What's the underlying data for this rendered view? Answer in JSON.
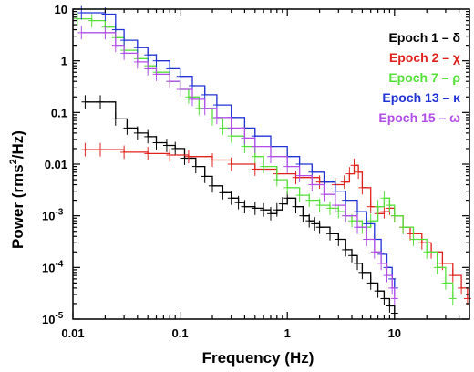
{
  "chart_data": {
    "type": "line",
    "xlabel": "Frequency (Hz)",
    "ylabel_main": "Power (rms",
    "ylabel_sup": "2",
    "ylabel_tail": "/Hz)",
    "xscale": "log",
    "yscale": "log",
    "xlim": [
      0.01,
      50
    ],
    "ylim": [
      1e-05,
      10
    ],
    "x_ticks": [
      {
        "value": 0.01,
        "label": "0.01"
      },
      {
        "value": 0.1,
        "label": "0.1"
      },
      {
        "value": 1,
        "label": "1"
      },
      {
        "value": 10,
        "label": "10"
      }
    ],
    "y_ticks": [
      {
        "value": 10,
        "label": "10"
      },
      {
        "value": 1,
        "label": "1"
      },
      {
        "value": 0.1,
        "label": "0.1"
      },
      {
        "value": 0.01,
        "label": "0.01"
      },
      {
        "value": 0.001,
        "label": "10",
        "sup": "-3"
      },
      {
        "value": 0.0001,
        "label": "10",
        "sup": "-4"
      },
      {
        "value": 1e-05,
        "label": "10",
        "sup": "-5"
      }
    ],
    "legend_position": "top-right",
    "grid": false,
    "series": [
      {
        "name": "Epoch 1 – δ",
        "color": "#000000",
        "points": [
          [
            0.013,
            0.16
          ],
          [
            0.018,
            0.16
          ],
          [
            0.025,
            0.075
          ],
          [
            0.032,
            0.05
          ],
          [
            0.04,
            0.04
          ],
          [
            0.05,
            0.034
          ],
          [
            0.06,
            0.026
          ],
          [
            0.075,
            0.023
          ],
          [
            0.09,
            0.02
          ],
          [
            0.11,
            0.013
          ],
          [
            0.14,
            0.009
          ],
          [
            0.17,
            0.0058
          ],
          [
            0.2,
            0.0038
          ],
          [
            0.25,
            0.0028
          ],
          [
            0.3,
            0.0022
          ],
          [
            0.35,
            0.0018
          ],
          [
            0.4,
            0.0015
          ],
          [
            0.5,
            0.0014
          ],
          [
            0.6,
            0.0013
          ],
          [
            0.7,
            0.0011
          ],
          [
            0.8,
            0.0013
          ],
          [
            0.9,
            0.0017
          ],
          [
            1.0,
            0.0022
          ],
          [
            1.2,
            0.0015
          ],
          [
            1.4,
            0.001
          ],
          [
            1.6,
            0.0008
          ],
          [
            1.8,
            0.0007
          ],
          [
            2.0,
            0.0006
          ],
          [
            2.5,
            0.00045
          ],
          [
            3.0,
            0.00035
          ],
          [
            3.5,
            0.00022
          ],
          [
            4.0,
            0.00017
          ],
          [
            4.5,
            0.00012
          ],
          [
            5.0,
            8e-05
          ],
          [
            6.0,
            5e-05
          ],
          [
            7.0,
            3.5e-05
          ],
          [
            8.0,
            2.5e-05
          ],
          [
            9.0,
            1.8e-05
          ],
          [
            10.0,
            1.3e-05
          ]
        ]
      },
      {
        "name": "Epoch 2 – χ",
        "color": "#e0221c",
        "points": [
          [
            0.013,
            0.019
          ],
          [
            0.018,
            0.019
          ],
          [
            0.03,
            0.017
          ],
          [
            0.05,
            0.016
          ],
          [
            0.08,
            0.015
          ],
          [
            0.12,
            0.014
          ],
          [
            0.2,
            0.012
          ],
          [
            0.3,
            0.01
          ],
          [
            0.5,
            0.008
          ],
          [
            0.8,
            0.0065
          ],
          [
            1.2,
            0.0055
          ],
          [
            2.0,
            0.0045
          ],
          [
            2.8,
            0.004
          ],
          [
            3.4,
            0.0045
          ],
          [
            3.8,
            0.0065
          ],
          [
            4.2,
            0.0095
          ],
          [
            4.6,
            0.007
          ],
          [
            5.0,
            0.0035
          ],
          [
            6.0,
            0.0015
          ],
          [
            7.0,
            0.0011
          ],
          [
            8.0,
            0.0012
          ],
          [
            9.0,
            0.0014
          ],
          [
            10.0,
            0.001
          ],
          [
            12.0,
            0.0006
          ],
          [
            14.0,
            0.00045
          ],
          [
            18.0,
            0.0003
          ],
          [
            22.0,
            0.0002
          ],
          [
            28.0,
            0.00012
          ],
          [
            35.0,
            7e-05
          ],
          [
            42.0,
            4e-05
          ],
          [
            48.0,
            2.5e-05
          ]
        ]
      },
      {
        "name": "Epoch 7 – ρ",
        "color": "#55e03a",
        "points": [
          [
            0.011,
            6.5
          ],
          [
            0.015,
            6.0
          ],
          [
            0.02,
            4.5
          ],
          [
            0.025,
            2.8
          ],
          [
            0.03,
            1.6
          ],
          [
            0.04,
            1.1
          ],
          [
            0.05,
            0.8
          ],
          [
            0.06,
            0.6
          ],
          [
            0.08,
            0.4
          ],
          [
            0.1,
            0.28
          ],
          [
            0.12,
            0.2
          ],
          [
            0.15,
            0.12
          ],
          [
            0.2,
            0.075
          ],
          [
            0.25,
            0.05
          ],
          [
            0.3,
            0.035
          ],
          [
            0.4,
            0.022
          ],
          [
            0.5,
            0.014
          ],
          [
            0.6,
            0.009
          ],
          [
            0.8,
            0.005
          ],
          [
            1.0,
            0.0035
          ],
          [
            1.3,
            0.0025
          ],
          [
            1.6,
            0.002
          ],
          [
            2.0,
            0.0016
          ],
          [
            2.5,
            0.0014
          ],
          [
            3.0,
            0.0012
          ],
          [
            3.5,
            0.001
          ],
          [
            4.0,
            0.0008
          ],
          [
            5.0,
            0.0006
          ],
          [
            6.0,
            0.0008
          ],
          [
            7.0,
            0.0015
          ],
          [
            8.0,
            0.0022
          ],
          [
            9.0,
            0.0016
          ],
          [
            10.0,
            0.001
          ],
          [
            12.0,
            0.0006
          ],
          [
            15.0,
            0.00035
          ],
          [
            20.0,
            0.0002
          ],
          [
            25.0,
            0.0001
          ],
          [
            30.0,
            5e-05
          ],
          [
            35.0,
            2.5e-05
          ]
        ]
      },
      {
        "name": "Epoch 13 – κ",
        "color": "#2233d6",
        "points": [
          [
            0.012,
            8.5
          ],
          [
            0.02,
            8.0
          ],
          [
            0.025,
            4.0
          ],
          [
            0.03,
            2.5
          ],
          [
            0.04,
            1.8
          ],
          [
            0.05,
            1.3
          ],
          [
            0.06,
            1.0
          ],
          [
            0.08,
            0.7
          ],
          [
            0.1,
            0.5
          ],
          [
            0.13,
            0.33
          ],
          [
            0.17,
            0.22
          ],
          [
            0.22,
            0.14
          ],
          [
            0.3,
            0.08
          ],
          [
            0.4,
            0.05
          ],
          [
            0.5,
            0.035
          ],
          [
            0.7,
            0.022
          ],
          [
            1.0,
            0.014
          ],
          [
            1.3,
            0.01
          ],
          [
            1.7,
            0.007
          ],
          [
            2.2,
            0.0045
          ],
          [
            2.8,
            0.003
          ],
          [
            3.5,
            0.002
          ],
          [
            4.5,
            0.0012
          ],
          [
            5.5,
            0.0007
          ],
          [
            6.5,
            0.00035
          ],
          [
            7.5,
            0.00018
          ],
          [
            8.5,
            0.0001
          ],
          [
            9.5,
            6e-05
          ],
          [
            10.0,
            4e-05
          ]
        ]
      },
      {
        "name": "Epoch 15 – ω",
        "color": "#b14ee8",
        "points": [
          [
            0.012,
            3.5
          ],
          [
            0.02,
            3.5
          ],
          [
            0.025,
            2.0
          ],
          [
            0.03,
            1.4
          ],
          [
            0.04,
            0.95
          ],
          [
            0.05,
            0.7
          ],
          [
            0.06,
            0.55
          ],
          [
            0.08,
            0.4
          ],
          [
            0.1,
            0.28
          ],
          [
            0.13,
            0.18
          ],
          [
            0.17,
            0.12
          ],
          [
            0.22,
            0.08
          ],
          [
            0.3,
            0.05
          ],
          [
            0.4,
            0.032
          ],
          [
            0.5,
            0.022
          ],
          [
            0.7,
            0.014
          ],
          [
            1.0,
            0.009
          ],
          [
            1.3,
            0.006
          ],
          [
            1.7,
            0.004
          ],
          [
            2.2,
            0.0026
          ],
          [
            2.8,
            0.0016
          ],
          [
            3.5,
            0.001
          ],
          [
            4.5,
            0.0006
          ],
          [
            5.5,
            0.00035
          ],
          [
            6.5,
            0.0002
          ],
          [
            7.5,
            0.00012
          ],
          [
            8.5,
            7e-05
          ],
          [
            9.5,
            4e-05
          ],
          [
            10.0,
            2.5e-05
          ]
        ]
      }
    ]
  }
}
